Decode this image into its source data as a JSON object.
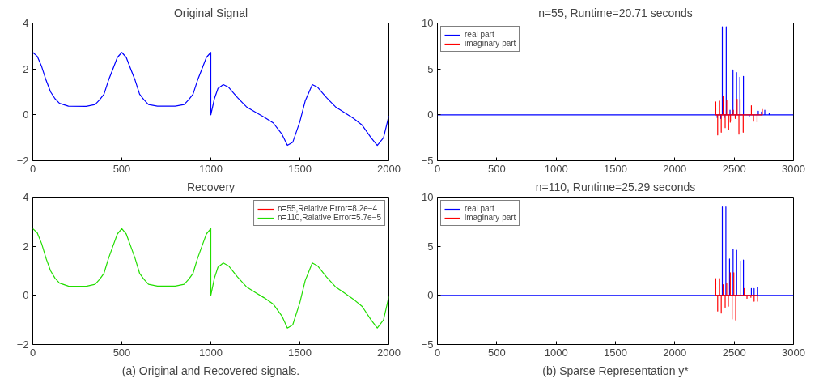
{
  "chart_data": [
    {
      "type": "line",
      "title": "Original Signal",
      "xlim": [
        0,
        2000
      ],
      "ylim": [
        -2,
        4
      ],
      "xticks": [
        0,
        500,
        1000,
        1500,
        2000
      ],
      "yticks": [
        -2,
        0,
        2,
        4
      ],
      "series": [
        {
          "color": "#0000ff",
          "x": [
            0,
            25,
            50,
            75,
            100,
            125,
            150,
            200,
            300,
            350,
            375,
            400,
            425,
            450,
            475,
            500,
            525,
            550,
            575,
            600,
            625,
            650,
            700,
            800,
            850,
            875,
            900,
            925,
            950,
            975,
            1000,
            1000,
            1020,
            1040,
            1070,
            1100,
            1150,
            1200,
            1250,
            1300,
            1350,
            1400,
            1430,
            1460,
            1500,
            1530,
            1570,
            1600,
            1650,
            1700,
            1750,
            1800,
            1850,
            1900,
            1935,
            1970,
            2000
          ],
          "values": [
            2.72,
            2.55,
            2.1,
            1.5,
            1.0,
            0.7,
            0.5,
            0.38,
            0.37,
            0.45,
            0.65,
            0.9,
            1.5,
            2.0,
            2.5,
            2.72,
            2.5,
            2.0,
            1.5,
            0.9,
            0.65,
            0.45,
            0.38,
            0.38,
            0.45,
            0.65,
            0.9,
            1.5,
            2.0,
            2.5,
            2.72,
            0,
            0.7,
            1.15,
            1.32,
            1.2,
            0.75,
            0.35,
            0.12,
            -0.1,
            -0.35,
            -0.85,
            -1.33,
            -1.2,
            -0.3,
            0.6,
            1.32,
            1.2,
            0.75,
            0.35,
            0.1,
            -0.15,
            -0.45,
            -1.0,
            -1.33,
            -1.0,
            -0.05
          ]
        }
      ]
    },
    {
      "type": "line",
      "title": "n=55, Runtime=20.71 seconds",
      "xlim": [
        0,
        3000
      ],
      "ylim": [
        -5,
        10
      ],
      "xticks": [
        0,
        500,
        1000,
        1500,
        2000,
        2500,
        3000
      ],
      "yticks": [
        -5,
        0,
        5,
        10
      ],
      "legend": "top left",
      "series": [
        {
          "name": "real part",
          "color": "#0000ff",
          "x": [
            0,
            2357,
            2357,
            2357,
            2387,
            2387,
            2387,
            2400,
            2400,
            2400,
            2417,
            2417,
            2417,
            2433,
            2433,
            2433,
            2465,
            2465,
            2465,
            2490,
            2490,
            2490,
            2520,
            2520,
            2520,
            2548,
            2548,
            2548,
            2578,
            2578,
            2578,
            2627,
            2627,
            2627,
            2703,
            2703,
            2703,
            2730,
            2730,
            2730,
            2758,
            2758,
            2758,
            2795,
            2795,
            2795,
            3000
          ],
          "values": [
            0,
            0,
            -0.3,
            0,
            0,
            -0.4,
            0,
            0,
            9.6,
            0,
            0,
            -0.3,
            0,
            0,
            9.6,
            0,
            0,
            0.5,
            0,
            0,
            4.9,
            0,
            0,
            4.6,
            0,
            0,
            4.1,
            0,
            0,
            4.2,
            0,
            0,
            -0.2,
            0,
            0,
            0.4,
            0,
            0,
            0.3,
            0,
            0,
            0.5,
            0,
            0,
            0.2,
            0,
            0
          ]
        },
        {
          "name": "imaginary part",
          "color": "#ff0000",
          "x": [
            2345,
            2345,
            2345,
            2361,
            2361,
            2361,
            2377,
            2377,
            2377,
            2391,
            2391,
            2391,
            2407,
            2407,
            2407,
            2424,
            2424,
            2424,
            2437,
            2437,
            2437,
            2453,
            2453,
            2453,
            2467,
            2467,
            2467,
            2481,
            2481,
            2481,
            2493,
            2493,
            2493,
            2509,
            2509,
            2509,
            2525,
            2525,
            2525,
            2540,
            2540,
            2540,
            2550,
            2550,
            2550,
            2576,
            2576,
            2576,
            2645,
            2645,
            2645,
            2663,
            2663,
            2663,
            2693,
            2693,
            2693,
            2737,
            2737,
            2737
          ],
          "values": [
            0,
            1.4,
            0,
            0,
            -2.2,
            0,
            0,
            1.5,
            0,
            0,
            -1.9,
            0,
            0,
            2.0,
            0,
            0,
            -1.4,
            0,
            0,
            1.6,
            0,
            0,
            -1.6,
            0,
            0,
            -0.8,
            0,
            0,
            -0.6,
            0,
            0,
            0.5,
            0,
            0,
            -0.4,
            0,
            0,
            1.7,
            0,
            0,
            -2.1,
            0,
            0,
            1.7,
            0,
            0,
            -1.9,
            0,
            0,
            1.0,
            0,
            0,
            -0.7,
            0,
            0,
            -0.8,
            0,
            0,
            0.6,
            0
          ]
        }
      ]
    },
    {
      "type": "line",
      "title": "Recovery",
      "xlim": [
        0,
        2000
      ],
      "ylim": [
        -2,
        4
      ],
      "xticks": [
        0,
        500,
        1000,
        1500,
        2000
      ],
      "yticks": [
        -2,
        0,
        2,
        4
      ],
      "legend": "top right",
      "annotations": [
        "(a) Original and Recovered signals."
      ],
      "series": [
        {
          "name": "n=55,Relative Error=8.2e−4",
          "color": "#ff0000"
        },
        {
          "name": "n=110,Ralative Error=5.7e−5",
          "color": "#22dd00",
          "x": [
            0,
            25,
            50,
            75,
            100,
            125,
            150,
            200,
            300,
            350,
            375,
            400,
            425,
            450,
            475,
            500,
            525,
            550,
            575,
            600,
            625,
            650,
            700,
            800,
            850,
            875,
            900,
            925,
            950,
            975,
            1000,
            1000,
            1020,
            1040,
            1070,
            1100,
            1150,
            1200,
            1250,
            1300,
            1350,
            1400,
            1430,
            1460,
            1500,
            1530,
            1570,
            1600,
            1650,
            1700,
            1750,
            1800,
            1850,
            1900,
            1935,
            1970,
            2000
          ],
          "values": [
            2.72,
            2.55,
            2.1,
            1.5,
            1.0,
            0.7,
            0.5,
            0.38,
            0.37,
            0.45,
            0.65,
            0.9,
            1.5,
            2.0,
            2.5,
            2.72,
            2.5,
            2.0,
            1.5,
            0.9,
            0.65,
            0.45,
            0.38,
            0.38,
            0.45,
            0.65,
            0.9,
            1.5,
            2.0,
            2.5,
            2.72,
            0,
            0.7,
            1.15,
            1.32,
            1.2,
            0.75,
            0.35,
            0.12,
            -0.1,
            -0.35,
            -0.85,
            -1.33,
            -1.2,
            -0.3,
            0.6,
            1.32,
            1.2,
            0.75,
            0.35,
            0.1,
            -0.15,
            -0.45,
            -1.0,
            -1.33,
            -1.0,
            -0.05
          ]
        }
      ]
    },
    {
      "type": "line",
      "title": "n=110, Runtime=25.29 seconds",
      "xlim": [
        0,
        3000
      ],
      "ylim": [
        -5,
        10
      ],
      "xticks": [
        0,
        500,
        1000,
        1500,
        2000,
        2500,
        3000
      ],
      "yticks": [
        -5,
        0,
        5,
        10
      ],
      "legend": "top left",
      "annotations": [
        "(b) Sparse Representation y*"
      ],
      "series": [
        {
          "name": "real part",
          "color": "#0000ff",
          "x": [
            0,
            2400,
            2400,
            2400,
            2430,
            2430,
            2430,
            2461,
            2461,
            2461,
            2491,
            2491,
            2491,
            2521,
            2521,
            2521,
            2551,
            2551,
            2551,
            2578,
            2578,
            2578,
            2645,
            2645,
            2645,
            2668,
            2668,
            2668,
            2698,
            2698,
            2698,
            3000
          ],
          "values": [
            0,
            0,
            9.0,
            0,
            0,
            9.0,
            0,
            0,
            3.7,
            0,
            0,
            4.7,
            0,
            0,
            4.6,
            0,
            0,
            3.5,
            0,
            0,
            3.6,
            0,
            0,
            0.7,
            0,
            0,
            0.7,
            0,
            0,
            0.8,
            0,
            0
          ]
        },
        {
          "name": "imaginary part",
          "color": "#ff0000",
          "x": [
            2345,
            2345,
            2345,
            2361,
            2361,
            2361,
            2377,
            2377,
            2377,
            2391,
            2391,
            2391,
            2407,
            2407,
            2407,
            2424,
            2424,
            2424,
            2437,
            2437,
            2437,
            2451,
            2451,
            2451,
            2467,
            2467,
            2467,
            2483,
            2483,
            2483,
            2497,
            2497,
            2497,
            2513,
            2513,
            2513,
            2585,
            2585,
            2585,
            2608,
            2608,
            2608,
            2641,
            2641,
            2641,
            2668,
            2668,
            2668,
            2696,
            2696,
            2696
          ],
          "values": [
            0,
            1.7,
            0,
            0,
            -1.6,
            0,
            0,
            1.7,
            0,
            0,
            -1.8,
            0,
            0,
            1.1,
            0,
            0,
            -1.2,
            0,
            0,
            1.2,
            0,
            0,
            -1.1,
            0,
            0,
            2.3,
            0,
            0,
            -2.4,
            0,
            0,
            2.3,
            0,
            0,
            -2.5,
            0,
            0,
            0.7,
            0,
            0,
            -0.3,
            0,
            0,
            -0.2,
            0,
            0,
            -0.6,
            0,
            0,
            -0.6,
            0
          ]
        }
      ]
    }
  ]
}
